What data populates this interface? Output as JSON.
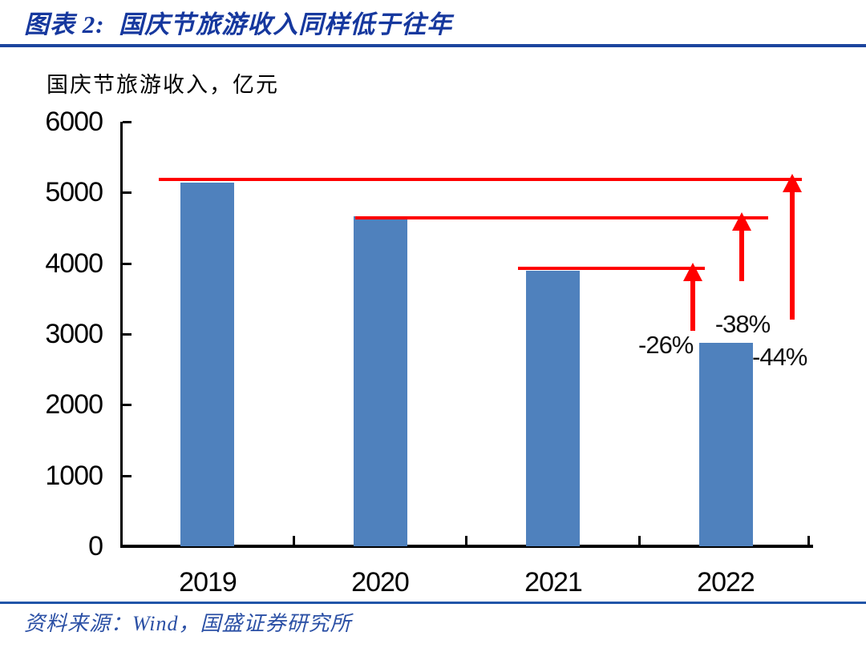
{
  "figure": {
    "title": "图表 2:  国庆节旅游收入同样低于往年",
    "source": "资料来源：Wind，国盛证券研究所"
  },
  "chart_data": {
    "type": "bar",
    "title": "国庆节旅游收入，亿元",
    "ylabel": "亿元",
    "categories": [
      "2019",
      "2020",
      "2021",
      "2022"
    ],
    "values": [
      5140,
      4665,
      3891,
      2872
    ],
    "ylim": [
      0,
      6000
    ],
    "yticks": [
      0,
      1000,
      2000,
      3000,
      4000,
      5000,
      6000
    ],
    "grid": false,
    "legend": false,
    "annotations": [
      {
        "label": "-26%",
        "vs_year": "2021",
        "ref_value": 3891
      },
      {
        "label": "-38%",
        "vs_year": "2020",
        "ref_value": 4665
      },
      {
        "label": "-44%",
        "vs_year": "2019",
        "ref_value": 5140
      }
    ]
  },
  "colors": {
    "title_blue": "#16389E",
    "rule_blue": "#1C459E",
    "bottom_rule_blue": "#2155A8",
    "source_blue": "#2B50A5",
    "bar_blue": "#4F81BD",
    "arrow_red": "#FF0000",
    "axis_black": "#000000"
  }
}
